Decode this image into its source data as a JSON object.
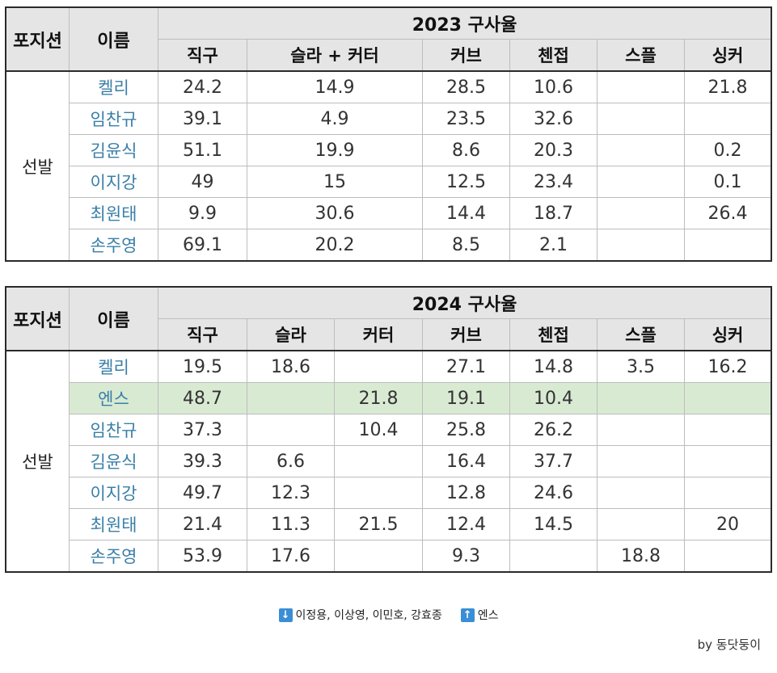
{
  "table_2023": {
    "header": {
      "position": "포지션",
      "name": "이름",
      "year": "2023 구사율"
    },
    "pitches": [
      "직구",
      "슬라 + 커터",
      "커브",
      "첸접",
      "스플",
      "싱커"
    ],
    "group_label": "선발",
    "rows": [
      {
        "name": "켈리",
        "values": [
          "24.2",
          "14.9",
          "28.5",
          "10.6",
          "",
          "21.8"
        ],
        "highlight": false
      },
      {
        "name": "임찬규",
        "values": [
          "39.1",
          "4.9",
          "23.5",
          "32.6",
          "",
          ""
        ],
        "highlight": false
      },
      {
        "name": "김윤식",
        "values": [
          "51.1",
          "19.9",
          "8.6",
          "20.3",
          "",
          "0.2"
        ],
        "highlight": false
      },
      {
        "name": "이지강",
        "values": [
          "49",
          "15",
          "12.5",
          "23.4",
          "",
          "0.1"
        ],
        "highlight": false
      },
      {
        "name": "최원태",
        "values": [
          "9.9",
          "30.6",
          "14.4",
          "18.7",
          "",
          "26.4"
        ],
        "highlight": false
      },
      {
        "name": "손주영",
        "values": [
          "69.1",
          "20.2",
          "8.5",
          "2.1",
          "",
          ""
        ],
        "highlight": false
      }
    ]
  },
  "table_2024": {
    "header": {
      "position": "포지션",
      "name": "이름",
      "year": "2024 구사율"
    },
    "pitches": [
      "직구",
      "슬라",
      "커터",
      "커브",
      "첸접",
      "스플",
      "싱커"
    ],
    "group_label": "선발",
    "rows": [
      {
        "name": "켈리",
        "values": [
          "19.5",
          "18.6",
          "",
          "27.1",
          "14.8",
          "3.5",
          "16.2"
        ],
        "highlight": false
      },
      {
        "name": "엔스",
        "values": [
          "48.7",
          "",
          "21.8",
          "19.1",
          "10.4",
          "",
          ""
        ],
        "highlight": true
      },
      {
        "name": "임찬규",
        "values": [
          "37.3",
          "",
          "10.4",
          "25.8",
          "26.2",
          "",
          ""
        ],
        "highlight": false
      },
      {
        "name": "김윤식",
        "values": [
          "39.3",
          "6.6",
          "",
          "16.4",
          "37.7",
          "",
          ""
        ],
        "highlight": false
      },
      {
        "name": "이지강",
        "values": [
          "49.7",
          "12.3",
          "",
          "12.8",
          "24.6",
          "",
          ""
        ],
        "highlight": false
      },
      {
        "name": "최원태",
        "values": [
          "21.4",
          "11.3",
          "21.5",
          "12.4",
          "14.5",
          "",
          "20"
        ],
        "highlight": false
      },
      {
        "name": "손주영",
        "values": [
          "53.9",
          "17.6",
          "",
          "9.3",
          "",
          "18.8",
          ""
        ],
        "highlight": false
      }
    ]
  },
  "legend": {
    "down_icon": "arrow-down-icon",
    "down_text": "이정용, 이상영, 이민호, 강효종",
    "up_icon": "arrow-up-icon",
    "up_text": "엔스"
  },
  "credit": "by 동닷둥이",
  "colors": {
    "name_text": "#3a7fa8",
    "header_bg": "#e5e5e5",
    "highlight_bg": "#d9ead3",
    "legend_icon_bg": "#3a8ed6"
  }
}
